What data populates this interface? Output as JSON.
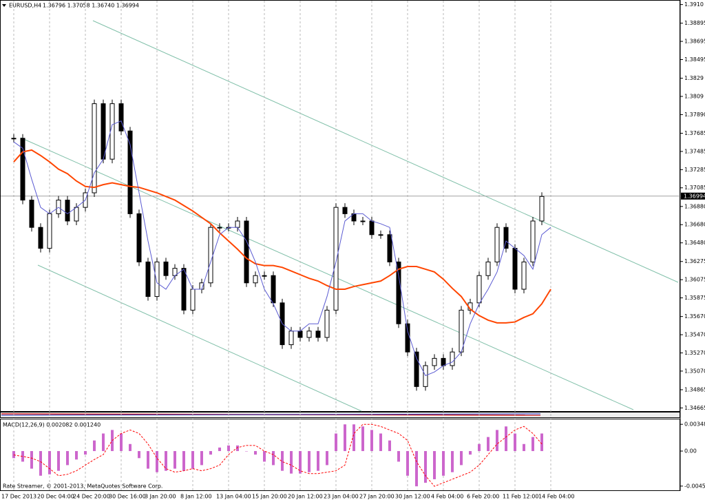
{
  "chart_data": [
    {
      "type": "candle-line",
      "title": "EURUSD,H4",
      "subtitle": "1.36796 1.37058 1.36740 1.36994",
      "categories": [
        "17 Dec 2013",
        null,
        null,
        null,
        "20 Dec 04:00",
        null,
        null,
        null,
        "24 Dec 20:00",
        null,
        null,
        null,
        "30 Dec 16:00",
        null,
        null,
        null,
        "3 Jan 20:00",
        null,
        null,
        null,
        "8 Jan 12:00",
        null,
        null,
        null,
        "13 Jan 04:00",
        null,
        null,
        null,
        "15 Jan 20:00",
        null,
        null,
        null,
        "20 Jan 12:00",
        null,
        null,
        null,
        "23 Jan 04:00",
        null,
        null,
        null,
        "27 Jan 20:00",
        null,
        null,
        null,
        "30 Jan 12:00",
        null,
        null,
        null,
        "4 Feb 04:00",
        null,
        null,
        null,
        "6 Feb 20:00",
        null,
        null,
        null,
        "11 Feb 12:00",
        null,
        null,
        null,
        "14 Feb 04:00"
      ],
      "series": [
        {
          "color": "#000000",
          "values": [
            1.3763,
            1.3695,
            1.3665,
            1.3642,
            1.368,
            1.3695,
            1.3672,
            1.3687,
            1.3703,
            1.3801,
            1.374,
            1.3801,
            1.3771,
            1.368,
            1.3627,
            1.3589,
            1.3627,
            1.3612,
            1.362,
            1.3574,
            1.3597,
            1.3604,
            1.3665,
            1.3665,
            1.3665,
            1.3672,
            1.3604,
            1.3612,
            1.3612,
            1.3582,
            1.3536,
            1.3551,
            1.3544,
            1.3551,
            1.3544,
            1.3574,
            1.3687,
            1.368,
            1.3672,
            1.3672,
            1.3657,
            1.3657,
            1.3627,
            1.3559,
            1.3528,
            1.349,
            1.3513,
            1.3521,
            1.3513,
            1.3528,
            1.3574,
            1.3582,
            1.3612,
            1.3627,
            1.3665,
            1.3642,
            1.3597,
            1.3627,
            1.3672,
            1.3699,
            null
          ]
        },
        {
          "color": "#ff4500",
          "values": [
            1.3737,
            1.3748,
            1.375,
            1.3744,
            1.3737,
            1.3729,
            1.3724,
            1.3716,
            1.371,
            1.3709,
            1.3712,
            1.3714,
            1.3712,
            1.371,
            1.3709,
            1.3706,
            1.3703,
            1.3699,
            1.3695,
            1.3689,
            1.3683,
            1.3676,
            1.3669,
            1.3659,
            1.365,
            1.3641,
            1.3631,
            1.3625,
            1.3623,
            1.3623,
            1.3621,
            1.3617,
            1.3613,
            1.3609,
            1.3606,
            1.3601,
            1.3597,
            1.3597,
            1.36,
            1.3602,
            1.3604,
            1.3606,
            1.3612,
            1.3619,
            1.3622,
            1.3622,
            1.3619,
            1.3616,
            1.3608,
            1.3598,
            1.3589,
            1.3575,
            1.3568,
            1.3563,
            1.356,
            1.356,
            1.3561,
            1.3566,
            1.357,
            1.3581,
            1.3597
          ]
        },
        {
          "color": "#5a5ad2",
          "values": [
            1.3759,
            1.3752,
            1.3718,
            1.3687,
            1.368,
            1.3687,
            1.368,
            1.3687,
            1.3695,
            1.3725,
            1.374,
            1.3778,
            1.3782,
            1.3756,
            1.3703,
            1.365,
            1.3604,
            1.3597,
            1.3612,
            1.3619,
            1.3597,
            1.3597,
            1.3627,
            1.3657,
            1.3665,
            1.3665,
            1.365,
            1.3627,
            1.3597,
            1.3581,
            1.3559,
            1.3551,
            1.3551,
            1.3559,
            1.3559,
            1.3589,
            1.3627,
            1.3672,
            1.368,
            1.368,
            1.3672,
            1.3669,
            1.3665,
            1.3612,
            1.3551,
            1.3521,
            1.3502,
            1.3506,
            1.3513,
            1.3517,
            1.3528,
            1.3559,
            1.3581,
            1.3597,
            1.3616,
            1.365,
            1.3642,
            1.3634,
            1.3619,
            1.3657,
            1.3665
          ]
        }
      ],
      "current_price": 1.36994,
      "ylim": [
        1.3463,
        1.3915
      ],
      "yticks": [
        {
          "value": 1.391,
          "label": "1.3910"
        },
        1.38895,
        1.38695,
        1.38495,
        1.3829,
        1.3809,
        {
          "value": 1.3789,
          "label": "1.37890"
        },
        1.37685,
        1.37485,
        1.37285,
        1.37085,
        {
          "value": 1.3688,
          "label": "1.36880"
        },
        {
          "value": 1.3668,
          "label": "1.36680"
        },
        {
          "value": 1.3648,
          "label": "1.36480"
        },
        1.36275,
        1.36075,
        1.35875,
        {
          "value": 1.3567,
          "label": "1.35670"
        },
        {
          "value": 1.3547,
          "label": "1.35470"
        },
        {
          "value": 1.3527,
          "label": "1.35270"
        },
        {
          "value": 1.3507,
          "label": "1.35070"
        },
        1.34865,
        1.34665
      ],
      "grid": true
    },
    {
      "type": "macd",
      "title": "MACD(12,26,9) 0.002082 0.001240",
      "color": "#cc66cc",
      "values": [
        -0.00092,
        -0.00138,
        -0.00229,
        -0.00321,
        -0.00303,
        -0.00257,
        -0.00183,
        -0.0011,
        -0.00046,
        0.00138,
        0.00229,
        0.00275,
        0.00229,
        0.00092,
        -0.00092,
        -0.00229,
        -0.00275,
        -0.00257,
        -0.00229,
        -0.00257,
        -0.00229,
        -0.00183,
        -0.00046,
        0.00046,
        0.00073,
        0.00073,
        0,
        -0.00046,
        -0.00138,
        -0.00183,
        -0.00257,
        -0.00293,
        -0.00293,
        -0.00275,
        -0.00257,
        -0.00183,
        0.00229,
        0.00348,
        0.00348,
        0.00321,
        0.00275,
        0.00229,
        0.00138,
        -0.00138,
        -0.00321,
        -0.00459,
        -0.00413,
        -0.00367,
        -0.00321,
        -0.00275,
        -0.00183,
        -0.00046,
        0.00092,
        0.00183,
        0.00275,
        0.00321,
        0.00229,
        0.00092,
        0.00183,
        0.00229,
        null
      ],
      "signal": {
        "color": "#ff0000",
        "values": [
          -0.0005,
          -0.0007,
          -0.00092,
          -0.00138,
          -0.00229,
          -0.00321,
          -0.00303,
          -0.00257,
          -0.00183,
          -0.0011,
          -0.00046,
          0.00138,
          0.00229,
          0.00275,
          0.00229,
          0.00092,
          -0.00092,
          -0.00229,
          -0.00275,
          -0.00257,
          -0.00229,
          -0.00257,
          -0.00229,
          -0.00183,
          -0.00046,
          0.00046,
          0.00073,
          0.00073,
          0,
          -0.00046,
          -0.00138,
          -0.00183,
          -0.00257,
          -0.00293,
          -0.00293,
          -0.00275,
          -0.00257,
          -0.00183,
          0.00229,
          0.00348,
          0.00348,
          0.00321,
          0.00275,
          0.00229,
          0.00138,
          -0.00138,
          -0.00321,
          -0.00459,
          -0.00413,
          -0.00367,
          -0.00321,
          -0.00275,
          -0.00183,
          -0.00046,
          0.00092,
          0.00183,
          0.00275,
          0.00321,
          0.00229,
          0.00092,
          null
        ]
      },
      "ylim": [
        -0.00511,
        0.00413
      ],
      "yticks": [
        0.003485,
        {
          "value": 0,
          "label": "0.00"
        },
        -0.004562
      ]
    }
  ],
  "footer": "Rate Streamer, © 2001-2013, MetaQuotes Software Corp."
}
